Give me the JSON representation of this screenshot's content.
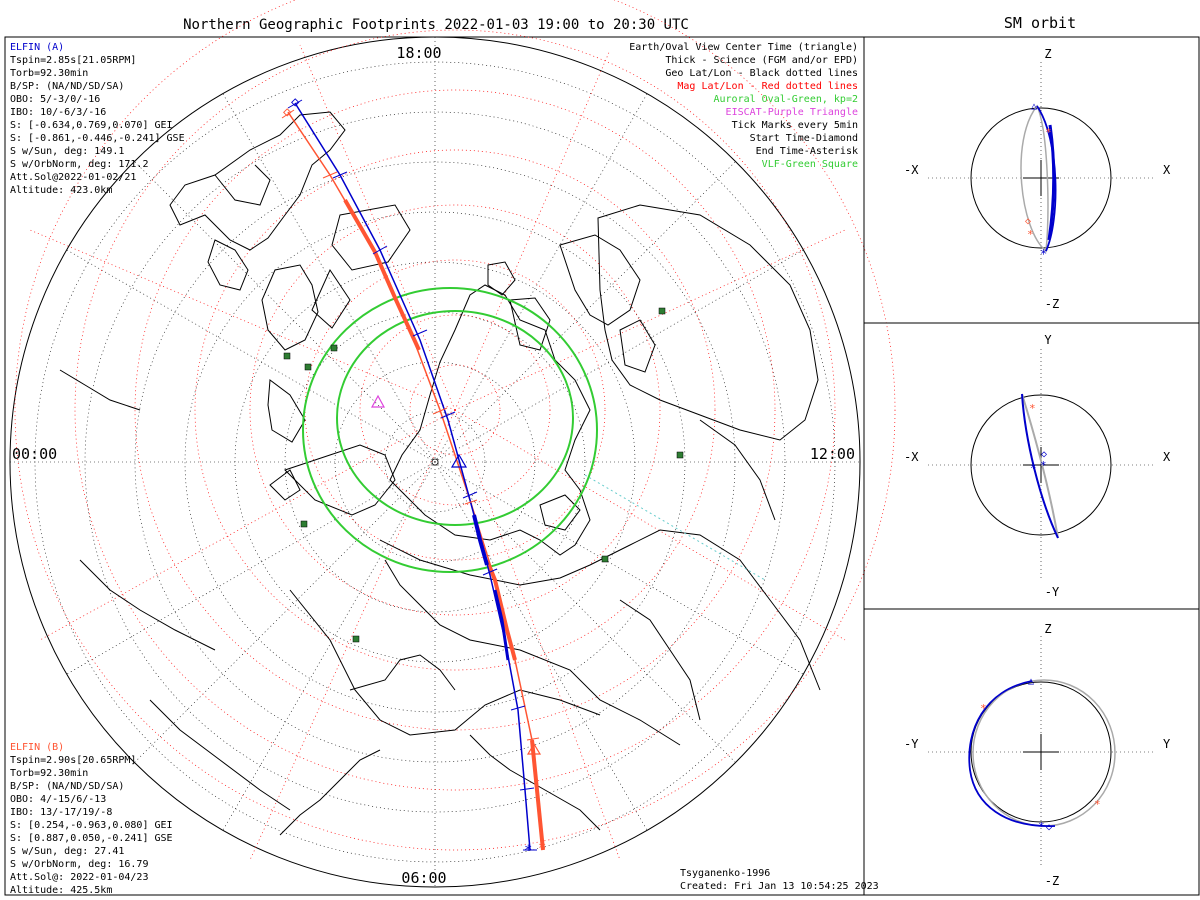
{
  "map": {
    "title": "Northern Geographic Footprints 2022-01-03 19:00 to 20:30 UTC",
    "time_labels": {
      "top": "18:00",
      "left": "00:00",
      "right": "12:00",
      "bottom": "06:00"
    },
    "legend": [
      {
        "text": "Earth/Oval View Center Time (triangle)",
        "color": "#000000"
      },
      {
        "text": "Thick - Science (FGM and/or EPD)",
        "color": "#000000"
      },
      {
        "text": "Geo Lat/Lon - Black dotted lines",
        "color": "#000000"
      },
      {
        "text": "Mag Lat/Lon - Red dotted lines",
        "color": "#ff0000"
      },
      {
        "text": "Auroral Oval-Green, kp=2",
        "color": "#33cc33"
      },
      {
        "text": "EISCAT-Purple Triangle",
        "color": "#dd44dd"
      },
      {
        "text": "Tick Marks every 5min",
        "color": "#000000"
      },
      {
        "text": "Start Time-Diamond",
        "color": "#000000"
      },
      {
        "text": "End Time-Asterisk",
        "color": "#000000"
      },
      {
        "text": "VLF-Green Square",
        "color": "#33cc33"
      }
    ],
    "elfin_a": {
      "name": "ELFIN (A)",
      "color": "#0000cc",
      "lines": [
        "Tspin=2.85s[21.05RPM]",
        "Torb=92.30min",
        "B/SP: (NA/ND/SD/SA)",
        "OBO: 5/-3/0/-16",
        "IBO: 10/-6/3/-16",
        "S: [-0.634,0.769,0.070] GEI",
        "S: [-0.861,-0.446,-0.241] GSE",
        "S w/Sun, deg: 149.1",
        "S w/OrbNorm, deg: 171.2",
        "Att.Sol@2022-01-02/21",
        "Altitude: 423.0km"
      ]
    },
    "elfin_b": {
      "name": "ELFIN (B)",
      "color": "#ff5533",
      "lines": [
        "Tspin=2.90s[20.65RPM]",
        "Torb=92.30min",
        "B/SP: (NA/ND/SD/SA)",
        "OBO: 4/-15/6/-13",
        "IBO: 13/-17/19/-8",
        "S: [0.254,-0.963,0.080] GEI",
        "S: [0.887,0.050,-0.241] GSE",
        "S w/Sun, deg: 27.41",
        "S w/OrbNorm, deg: 16.79",
        "Att.Sol@: 2022-01-04/23",
        "Altitude: 425.5km"
      ]
    },
    "credit": "Tsyganenko-1996",
    "created": "Created: Fri Jan 13 10:54:25 2023"
  },
  "orbit": {
    "title": "SM orbit",
    "panels": [
      {
        "top": "Z",
        "bottom": "-Z",
        "left": "-X",
        "right": "X"
      },
      {
        "top": "Y",
        "bottom": "-Y",
        "left": "-X",
        "right": "X"
      },
      {
        "top": "Z",
        "bottom": "-Z",
        "left": "-Y",
        "right": "Y"
      }
    ]
  },
  "colors": {
    "elfin_a": "#0000cc",
    "elfin_b": "#ff5533",
    "oval": "#33cc33",
    "mag_grid": "#ff0000",
    "geo_grid": "#000000",
    "vlf": "#2e7d32",
    "eiscat": "#dd44dd",
    "orbit_gray": "#aaaaaa"
  }
}
